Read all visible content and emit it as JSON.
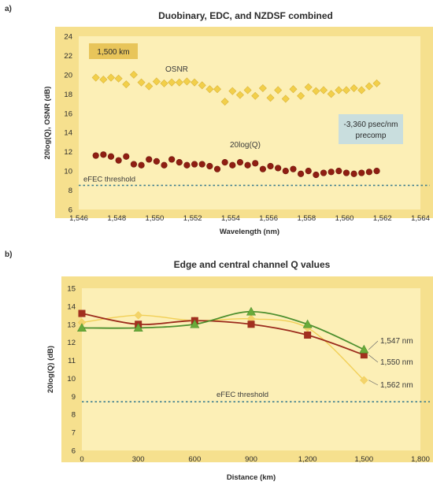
{
  "panels": [
    {
      "label": "a)",
      "title": "Duobinary, EDC, and NZDSF combined",
      "distance_box": "1,500 km",
      "precomp_box": [
        "-3,360 psec/nm",
        "precomp"
      ],
      "series_labels": {
        "osnr": "OSNR",
        "q": "20log(Q)"
      },
      "threshold_label": "eFEC threshold"
    },
    {
      "label": "b)",
      "title": "Edge and central channel Q values",
      "threshold_label": "eFEC threshold"
    }
  ],
  "colors": {
    "plot_bg": "#fcefb6",
    "frame": "#f6e08e",
    "osnr": "#f2cf4a",
    "q": "#8f1e12",
    "threshold": "#3d7e8f",
    "line_1547": "#4d8f2e",
    "marker_1547": "#6aab3a",
    "line_1550": "#9b2a1c",
    "marker_1550": "#a2301f",
    "line_1562": "#f1cf56",
    "marker_1562": "#f3d36b",
    "label_box_1500": "#e8c55a",
    "label_box_precomp": "#c9dede"
  },
  "chart_data": [
    {
      "type": "scatter",
      "title": "Duobinary, EDC, and NZDSF combined",
      "xlabel": "Wavelength (nm)",
      "ylabel": "20log(Q), OSNR (dB)",
      "xlim": [
        1546,
        1564
      ],
      "ylim": [
        6,
        24
      ],
      "xticks": [
        1546,
        1548,
        1550,
        1552,
        1554,
        1556,
        1558,
        1560,
        1562,
        1564
      ],
      "yticks": [
        6,
        8,
        10,
        12,
        14,
        16,
        18,
        20,
        22,
        24
      ],
      "xtick_labels": [
        "1,546",
        "1,548",
        "1,550",
        "1,552",
        "1,554",
        "1,556",
        "1,558",
        "1,560",
        "1,562",
        "1,564"
      ],
      "ytick_labels": [
        "6",
        "8",
        "10",
        "12",
        "14",
        "16",
        "18",
        "20",
        "22",
        "24"
      ],
      "grid": false,
      "threshold": 8.5,
      "series": [
        {
          "name": "OSNR",
          "marker": "diamond",
          "x": [
            1546.9,
            1547.3,
            1547.7,
            1548.1,
            1548.5,
            1548.9,
            1549.3,
            1549.7,
            1550.1,
            1550.5,
            1550.9,
            1551.3,
            1551.7,
            1552.1,
            1552.5,
            1552.9,
            1553.3,
            1553.7,
            1554.1,
            1554.5,
            1554.9,
            1555.3,
            1555.7,
            1556.1,
            1556.5,
            1556.9,
            1557.3,
            1557.7,
            1558.1,
            1558.5,
            1558.9,
            1559.3,
            1559.7,
            1560.1,
            1560.5,
            1560.9,
            1561.3,
            1561.7
          ],
          "values": [
            19.7,
            19.5,
            19.7,
            19.6,
            19.0,
            20.0,
            19.2,
            18.8,
            19.3,
            19.1,
            19.2,
            19.2,
            19.3,
            19.2,
            18.9,
            18.5,
            18.5,
            17.2,
            18.3,
            17.9,
            18.4,
            17.8,
            18.6,
            17.6,
            18.4,
            17.5,
            18.5,
            17.8,
            18.7,
            18.3,
            18.4,
            18.0,
            18.4,
            18.4,
            18.6,
            18.4,
            18.8,
            19.1
          ]
        },
        {
          "name": "20log(Q)",
          "marker": "circle",
          "x": [
            1546.9,
            1547.3,
            1547.7,
            1548.1,
            1548.5,
            1548.9,
            1549.3,
            1549.7,
            1550.1,
            1550.5,
            1550.9,
            1551.3,
            1551.7,
            1552.1,
            1552.5,
            1552.9,
            1553.3,
            1553.7,
            1554.1,
            1554.5,
            1554.9,
            1555.3,
            1555.7,
            1556.1,
            1556.5,
            1556.9,
            1557.3,
            1557.7,
            1558.1,
            1558.5,
            1558.9,
            1559.3,
            1559.7,
            1560.1,
            1560.5,
            1560.9,
            1561.3,
            1561.7
          ],
          "values": [
            11.6,
            11.7,
            11.5,
            11.1,
            11.5,
            10.7,
            10.6,
            11.2,
            11.0,
            10.6,
            11.2,
            10.9,
            10.6,
            10.7,
            10.7,
            10.5,
            10.2,
            10.9,
            10.6,
            10.9,
            10.6,
            10.8,
            10.2,
            10.5,
            10.3,
            10.0,
            10.2,
            9.7,
            10.0,
            9.6,
            9.8,
            9.9,
            10.0,
            9.8,
            9.7,
            9.8,
            9.9,
            10.0
          ]
        }
      ]
    },
    {
      "type": "line",
      "title": "Edge and central channel Q values",
      "xlabel": "Distance (km)",
      "ylabel": "20log(Q) (dB)",
      "xlim": [
        0,
        1800
      ],
      "ylim": [
        6,
        15
      ],
      "xticks": [
        0,
        300,
        600,
        900,
        1200,
        1500,
        1800
      ],
      "yticks": [
        6,
        7,
        8,
        9,
        10,
        11,
        12,
        13,
        14,
        15
      ],
      "xtick_labels": [
        "0",
        "300",
        "600",
        "900",
        "1,200",
        "1,500",
        "1,800"
      ],
      "ytick_labels": [
        "6",
        "7",
        "8",
        "9",
        "10",
        "11",
        "12",
        "13",
        "14",
        "15"
      ],
      "grid": false,
      "threshold": 8.7,
      "x": [
        0,
        300,
        600,
        900,
        1200,
        1500
      ],
      "series": [
        {
          "name": "1,547 nm",
          "marker": "triangle",
          "values": [
            12.8,
            12.8,
            13.0,
            13.7,
            13.0,
            11.6
          ]
        },
        {
          "name": "1,550 nm",
          "marker": "square",
          "values": [
            13.6,
            13.0,
            13.2,
            13.0,
            12.4,
            11.3
          ]
        },
        {
          "name": "1,562 nm",
          "marker": "diamond",
          "values": [
            13.1,
            13.5,
            13.2,
            13.3,
            12.8,
            9.9
          ]
        }
      ]
    }
  ]
}
